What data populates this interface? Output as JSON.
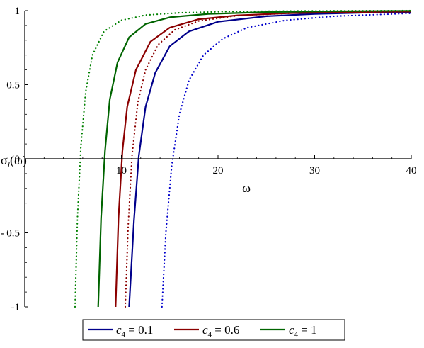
{
  "chart_data": {
    "type": "line",
    "xlabel": "ω",
    "ylabel_symbol": "σ",
    "ylabel_sub": "l",
    "ylabel_arg": "(ω)",
    "xlim": [
      0,
      40
    ],
    "ylim": [
      -1,
      1
    ],
    "x_ticks": [
      10,
      20,
      30,
      40
    ],
    "x_tick_labels": [
      "10",
      "20",
      "30",
      "40"
    ],
    "y_ticks": [
      -1,
      -0.5,
      0,
      0.5,
      1
    ],
    "y_tick_labels": [
      "-1",
      "- 0.5",
      "0",
      "0.5",
      "1"
    ],
    "grid": false,
    "legend_position": "bottom",
    "series": [
      {
        "legend": "c4 = 0.1",
        "param": "c4",
        "value": "0.1",
        "color": "#00008B",
        "style": "solid",
        "x": [
          10.8,
          11.3,
          11.8,
          12.5,
          13.5,
          15,
          17,
          20,
          25,
          30,
          35,
          40
        ],
        "y": [
          -1,
          -0.42,
          0.02,
          0.35,
          0.58,
          0.76,
          0.86,
          0.925,
          0.962,
          0.978,
          0.986,
          0.99
        ]
      },
      {
        "legend": "c4 = 0.6",
        "param": "c4",
        "value": "0.6",
        "color": "#8B0000",
        "style": "solid",
        "x": [
          9.4,
          9.7,
          10.1,
          10.6,
          11.5,
          13,
          15,
          18,
          22,
          27,
          33,
          40
        ],
        "y": [
          -1,
          -0.4,
          0.05,
          0.35,
          0.6,
          0.79,
          0.885,
          0.942,
          0.968,
          0.982,
          0.99,
          0.994
        ]
      },
      {
        "legend": "c4 = 1",
        "param": "c4",
        "value": "1",
        "color": "#006400",
        "style": "solid",
        "x": [
          7.6,
          7.9,
          8.3,
          8.8,
          9.6,
          10.8,
          12.5,
          15,
          19,
          25,
          32,
          40
        ],
        "y": [
          -1,
          -0.4,
          0.05,
          0.4,
          0.65,
          0.82,
          0.91,
          0.955,
          0.978,
          0.99,
          0.995,
          0.998
        ]
      },
      {
        "legend": "",
        "param": "c4",
        "value": "0.1 (dotted)",
        "color": "#0000CC",
        "style": "dotted",
        "x": [
          14.2,
          14.6,
          15.2,
          16,
          17,
          18.5,
          20.5,
          23,
          27,
          32,
          40
        ],
        "y": [
          -1,
          -0.5,
          -0.05,
          0.3,
          0.53,
          0.7,
          0.81,
          0.885,
          0.935,
          0.962,
          0.982
        ]
      },
      {
        "legend": "",
        "param": "c4",
        "value": "0.6 (dotted)",
        "color": "#8B0000",
        "style": "dotted",
        "x": [
          10.4,
          10.7,
          11.1,
          11.7,
          12.5,
          13.8,
          15.5,
          18,
          22,
          28,
          40
        ],
        "y": [
          -1,
          -0.45,
          0.02,
          0.38,
          0.6,
          0.77,
          0.87,
          0.93,
          0.966,
          0.984,
          0.994
        ]
      },
      {
        "legend": "",
        "param": "c4",
        "value": "1 (dotted)",
        "color": "#008000",
        "style": "dotted",
        "x": [
          5.2,
          5.45,
          5.8,
          6.3,
          7,
          8.2,
          10,
          12.5,
          16,
          21,
          28,
          40
        ],
        "y": [
          -1,
          -0.4,
          0.08,
          0.45,
          0.7,
          0.86,
          0.935,
          0.97,
          0.985,
          0.994,
          0.998,
          1.0
        ]
      }
    ]
  }
}
